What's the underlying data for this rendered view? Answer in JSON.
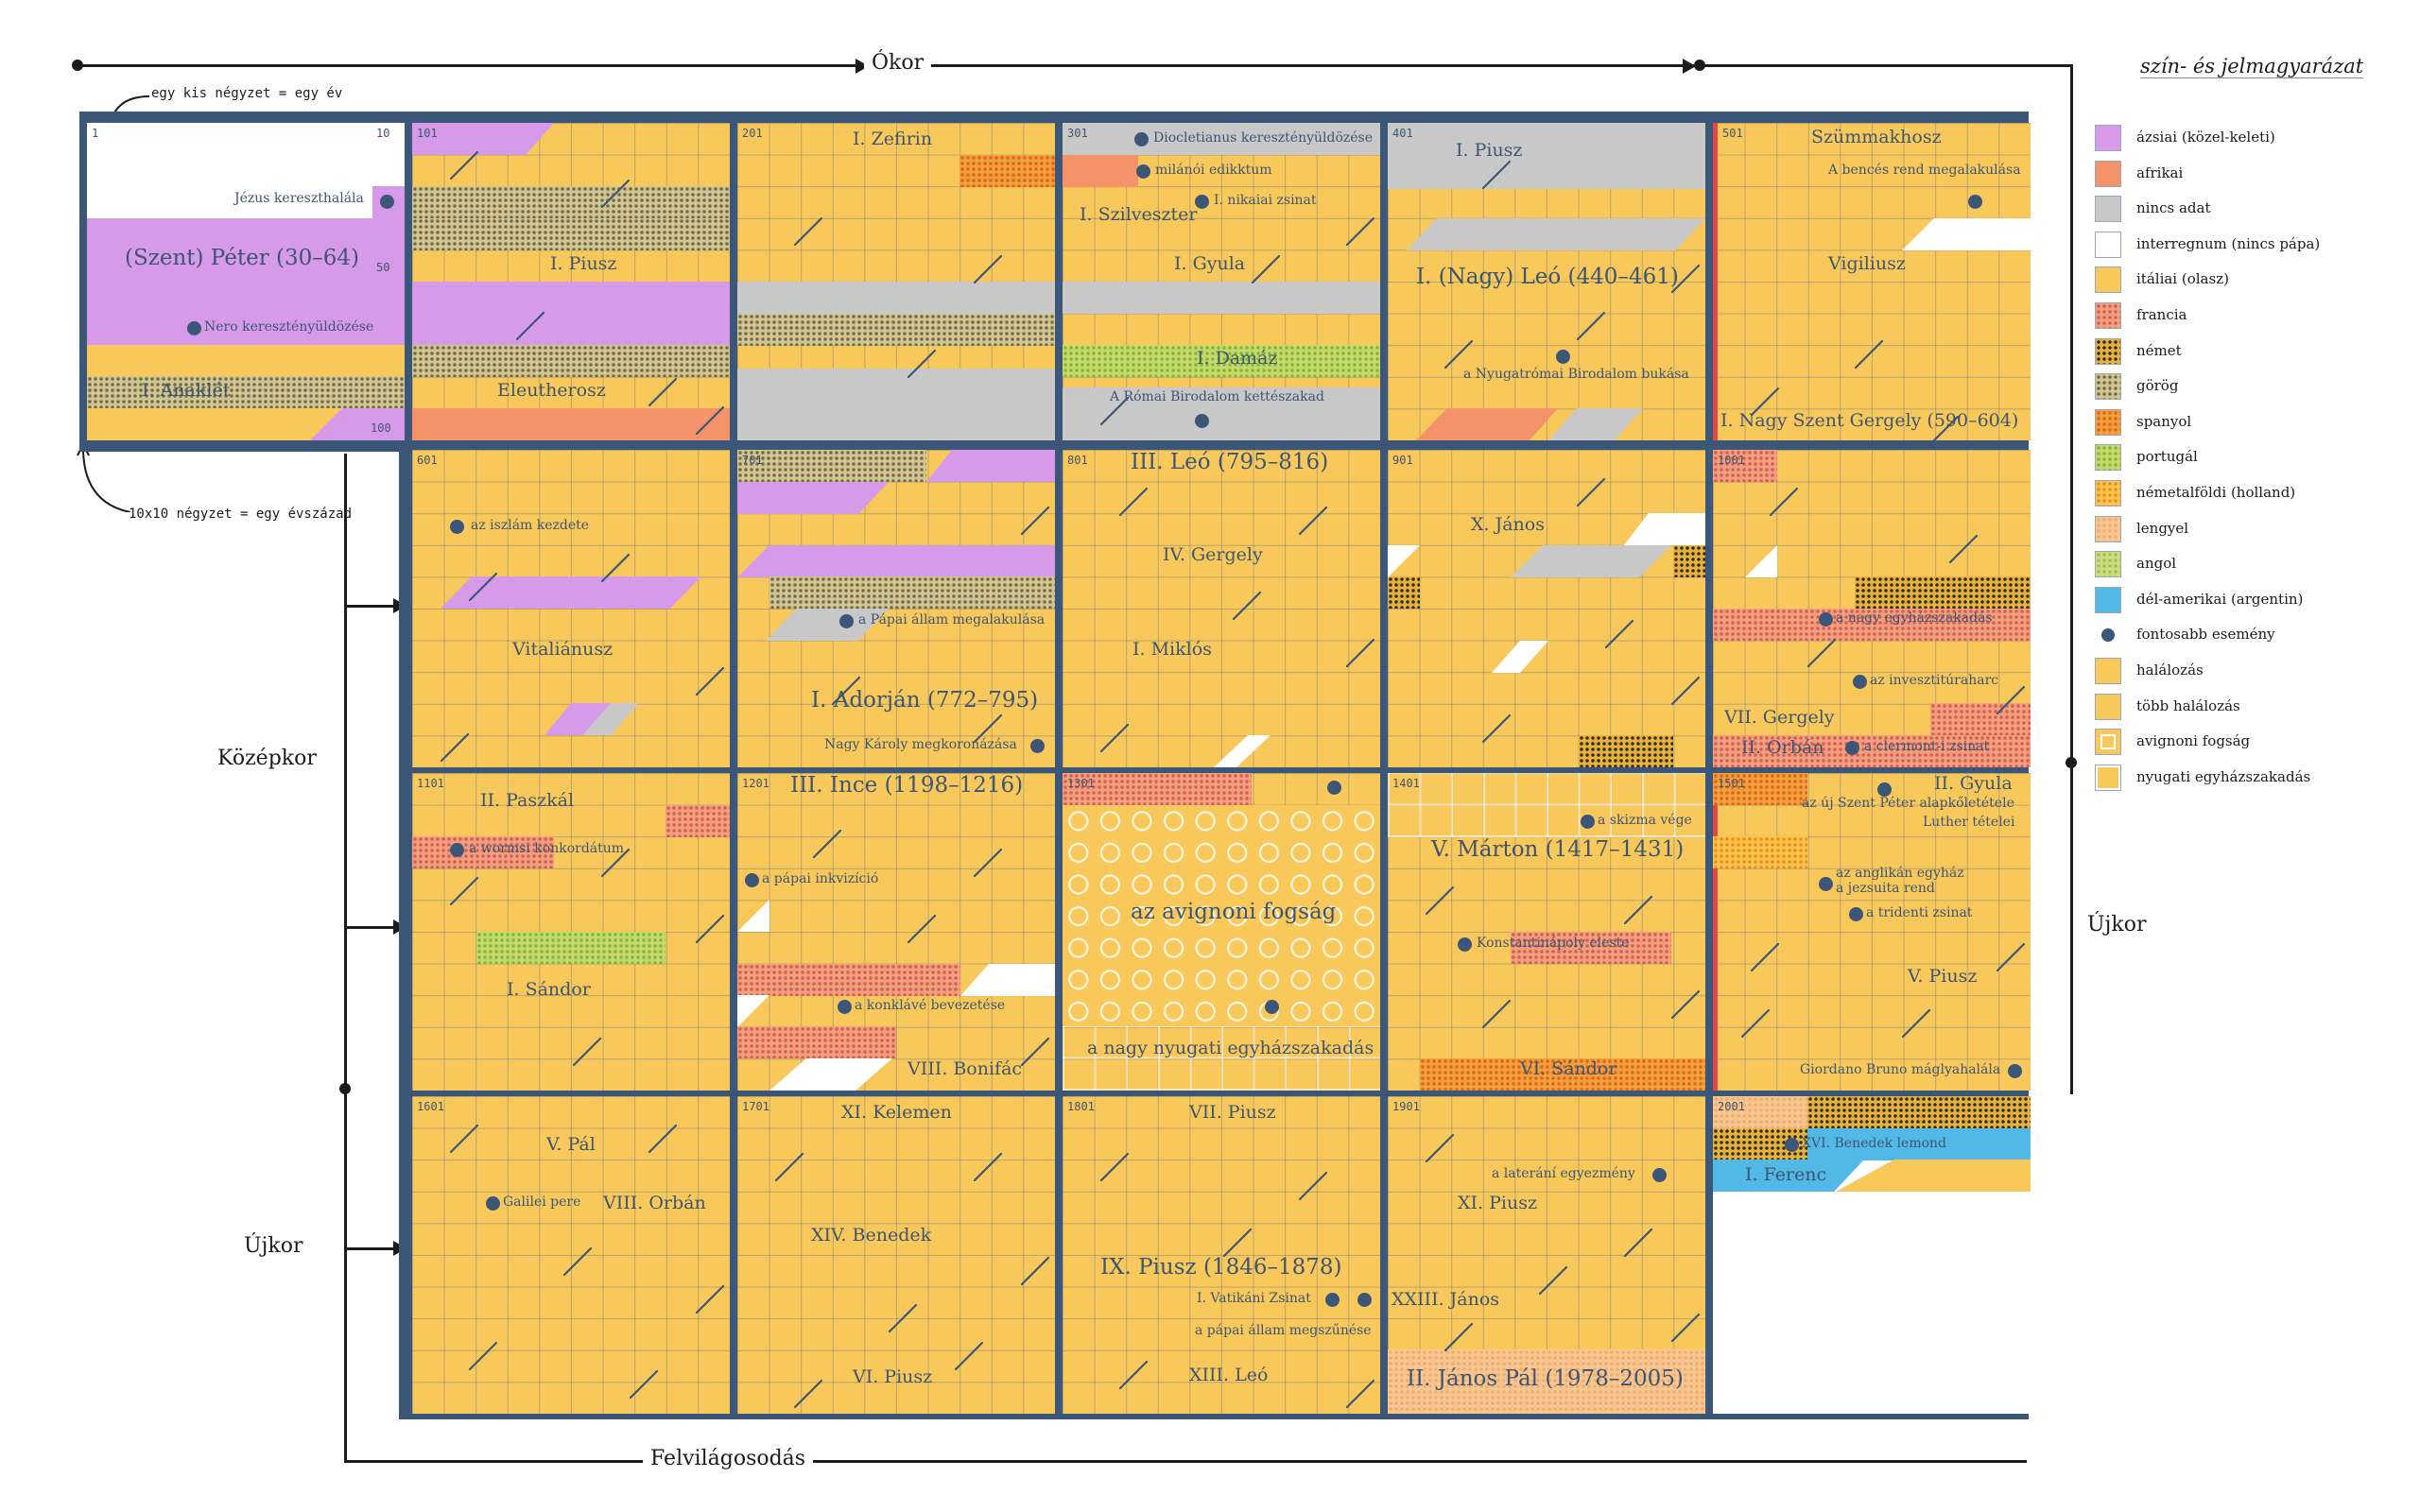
{
  "eras": {
    "okor": "Ókor",
    "kozepkor": "Középkor",
    "ujkor_left": "Újkor",
    "ujkor_right": "Újkor",
    "felvilagosodas": "Felvilágosodás"
  },
  "notes": {
    "small_square": "egy kis négyzet = egy év",
    "big_square": "10x10 négyzet = egy évszázad"
  },
  "legend": {
    "title": "szín- és jelmagyarázat",
    "items": [
      {
        "label": "ázsiai (közel-keleti)",
        "swatch": "asian",
        "color": "#d69ae8"
      },
      {
        "label": "afrikai",
        "swatch": "african",
        "color": "#f4936a"
      },
      {
        "label": "nincs adat",
        "swatch": "nodata",
        "color": "#c8c8c8"
      },
      {
        "label": "interregnum (nincs pápa)",
        "swatch": "interregnum",
        "color": "#ffffff"
      },
      {
        "label": "itáliai (olasz)",
        "swatch": "italian",
        "color": "#f8c95a"
      },
      {
        "label": "francia",
        "swatch": "french",
        "color": "#f0a07a"
      },
      {
        "label": "német",
        "swatch": "german",
        "color": "#e6b23b"
      },
      {
        "label": "görög",
        "swatch": "greek",
        "color": "#d2c58e"
      },
      {
        "label": "spanyol",
        "swatch": "spanish",
        "color": "#f0a040"
      },
      {
        "label": "portugál",
        "swatch": "portuguese",
        "color": "#c7d96b"
      },
      {
        "label": "németalföldi (holland)",
        "swatch": "dutch",
        "color": "#f9c44a"
      },
      {
        "label": "lengyel",
        "swatch": "polish",
        "color": "#f6c78e"
      },
      {
        "label": "angol",
        "swatch": "english",
        "color": "#cfdc7c"
      },
      {
        "label": "dél-amerikai (argentin)",
        "swatch": "argentine",
        "color": "#52b8e6"
      },
      {
        "label": "fontosabb esemény",
        "swatch": "event",
        "color": "#3b5677"
      },
      {
        "label": "halálozás",
        "swatch": "death",
        "color": "#f8c95a"
      },
      {
        "label": "több halálozás",
        "swatch": "deaths",
        "color": "#f8c95a"
      },
      {
        "label": "avignoni fogság",
        "swatch": "avignon",
        "color": "#f8c95a"
      },
      {
        "label": "nyugati egyházszakadás",
        "swatch": "schism",
        "color": "#f8c95a"
      }
    ]
  },
  "centuries": [
    {
      "num": "1",
      "num_end": "10",
      "num_mid": "50",
      "num_last": "100"
    },
    {
      "num": "101"
    },
    {
      "num": "201"
    },
    {
      "num": "301"
    },
    {
      "num": "401"
    },
    {
      "num": "501"
    },
    {
      "num": "601"
    },
    {
      "num": "701"
    },
    {
      "num": "801"
    },
    {
      "num": "901"
    },
    {
      "num": "1001"
    },
    {
      "num": "1101"
    },
    {
      "num": "1201"
    },
    {
      "num": "1301"
    },
    {
      "num": "1401"
    },
    {
      "num": "1501"
    },
    {
      "num": "1601"
    },
    {
      "num": "1701"
    },
    {
      "num": "1801"
    },
    {
      "num": "1901"
    },
    {
      "num": "2001"
    }
  ],
  "labels": {
    "c1": {
      "peter": "(Szent) Péter (30–64)",
      "jesus": "Jézus kereszthalála",
      "nero": "Nero keresztényüldözése",
      "anaklet": "I. Anaklét"
    },
    "c2": {
      "pius": "I. Piusz",
      "eleutherosz": "Eleutherosz"
    },
    "c3": {
      "zefirin": "I. Zefirin"
    },
    "c4": {
      "diocletianus": "Diocletianus keresztényüldözése",
      "milanoi": "milánói edikktum",
      "szilveszter": "I. Szilveszter",
      "nikaiai": "I. nikaiai zsinat",
      "gyula": "I. Gyula",
      "damaz": "I. Damáz",
      "romai": "A Római Birodalom kettészakad"
    },
    "c5": {
      "pius": "I. Piusz",
      "leo": "I. (Nagy) Leó (440–461)",
      "nyugatromai": "a Nyugatrómai Birodalom bukása"
    },
    "c6": {
      "szummakhosz": "Szümmakhosz",
      "bences": "A bencés rend megalakulása",
      "vigilius": "Vigiliusz",
      "gergely": "I. Nagy Szent Gergely (590–604)"
    },
    "c7": {
      "iszlam": "az iszlám kezdete",
      "vitalianusz": "Vitaliánusz"
    },
    "c8": {
      "papai": "a Pápai állam megalakulása",
      "adorjan": "I. Adorján (772–795)",
      "karoly": "Nagy Károly megkoronázása"
    },
    "c9": {
      "leo": "III. Leó (795–816)",
      "gergely": "IV. Gergely",
      "miklos": "I. Miklós"
    },
    "c10": {
      "janos": "X. János"
    },
    "c11": {
      "nagy": "a nagy egyházszakadás",
      "invesztitura": "az invesztitúraharc",
      "gergely": "VII. Gergely",
      "orban": "II. Orbán",
      "clermont": "a clermont-i zsinat"
    },
    "c12": {
      "paszkal": "II. Paszkál",
      "wormsi": "a wormsi konkordátum",
      "sandor": "I. Sándor"
    },
    "c13": {
      "ince": "III. Ince (1198–1216)",
      "inkvizicio": "a pápai inkvizíció",
      "konklave": "a konklávé bevezetése",
      "bonifac": "VIII. Bonifác"
    },
    "c14": {
      "avignon": "az avignoni fogság",
      "nyugati": "a nagy nyugati egyházszakadás"
    },
    "c15": {
      "skizma": "a skizma vége",
      "marton": "V. Márton (1417–1431)",
      "konstantinapoly": "Konstantinápoly eleste",
      "sandor": "VI. Sándor"
    },
    "c16": {
      "gyula": "II. Gyula",
      "szentpeter": "az új Szent Péter alapkőletétele",
      "luther": "Luther tételei",
      "anglikan": "az anglikán egyház",
      "jezsuita": "a jezsuita rend",
      "tridenti": "a tridenti zsinat",
      "pius": "V. Piusz",
      "bruno": "Giordano Bruno máglyahalála"
    },
    "c17": {
      "pal": "V. Pál",
      "galilei": "Galilei pere",
      "orban": "VIII. Orbán"
    },
    "c18": {
      "kelemen": "XI. Kelemen",
      "benedek": "XIV. Benedek",
      "pius": "VI. Piusz"
    },
    "c19": {
      "pius7": "VII. Piusz",
      "pius9": "IX. Piusz (1846–1878)",
      "vatikani": "I. Vatikáni Zsinat",
      "megszunese": "a pápai állam megszűnése",
      "leo": "XIII. Leó"
    },
    "c20": {
      "lateran": "a laterání egyezmény",
      "pius": "XI. Piusz",
      "janos": "XXIII. János",
      "janospal": "II. János Pál  (1978–2005)"
    },
    "c21": {
      "benedek": "XVI. Benedek lemond",
      "ferenc": "I. Ferenc"
    }
  }
}
